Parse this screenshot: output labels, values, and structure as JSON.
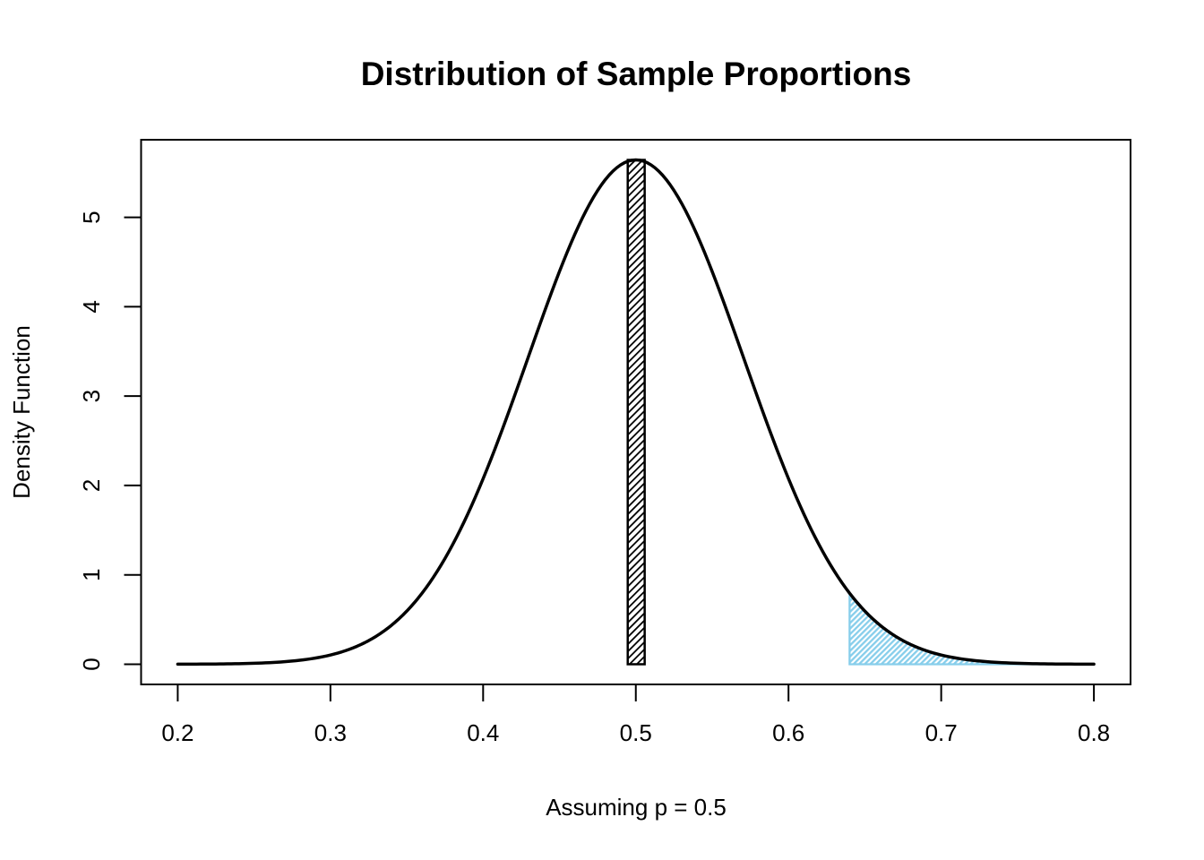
{
  "chart_data": {
    "type": "line",
    "title": "Distribution of Sample Proportions",
    "xlabel": "Assuming p = 0.5",
    "ylabel": "Density Function",
    "xlim": [
      0.176,
      0.824
    ],
    "ylim": [
      -0.2257,
      5.8676
    ],
    "x_ticks": [
      0.2,
      0.3,
      0.4,
      0.5,
      0.6,
      0.7,
      0.8
    ],
    "x_tick_labels": [
      "0.2",
      "0.3",
      "0.4",
      "0.5",
      "0.6",
      "0.7",
      "0.8"
    ],
    "y_ticks": [
      0,
      1,
      2,
      3,
      4,
      5
    ],
    "y_tick_labels": [
      "0",
      "1",
      "2",
      "3",
      "4",
      "5"
    ],
    "grid": false,
    "legend": false,
    "curve": {
      "name": "normal-density",
      "distribution": "normal",
      "mean": 0.5,
      "sd": 0.070710678,
      "x_range": [
        0.2,
        0.8
      ],
      "peak_density": 5.6419,
      "color": "#000000",
      "line_width": 3.5
    },
    "series": [
      {
        "name": "density-curve-samples",
        "x": [
          0.2,
          0.25,
          0.3,
          0.35,
          0.4,
          0.45,
          0.5,
          0.55,
          0.6,
          0.65,
          0.7,
          0.75,
          0.8
        ],
        "y": [
          0.0007,
          0.0109,
          0.1033,
          0.5947,
          2.0756,
          4.3938,
          5.6419,
          4.3938,
          2.0756,
          0.5947,
          0.1033,
          0.0109,
          0.0007
        ]
      }
    ],
    "center_bar": {
      "x_from": 0.4947,
      "x_to": 0.5058,
      "y_from": 0,
      "y_to": 5.6419,
      "fill_style": "diagonal-hatch",
      "color": "#000000",
      "border_width": 2.5,
      "hatch_spacing": 5.7,
      "hatch_line_width": 1.8
    },
    "shaded_tail": {
      "x_from": 0.64,
      "x_to": 0.8,
      "y_at_boundary": 0.7947,
      "upper_boundary": "curve",
      "lower_boundary": 0,
      "fill_style": "diagonal-hatch",
      "color": "#87CEEB",
      "border_width": 2.3,
      "hatch_spacing": 4.4,
      "hatch_line_width": 2.3
    },
    "axis_color": "#000000",
    "background_color": "#FFFFFF"
  }
}
